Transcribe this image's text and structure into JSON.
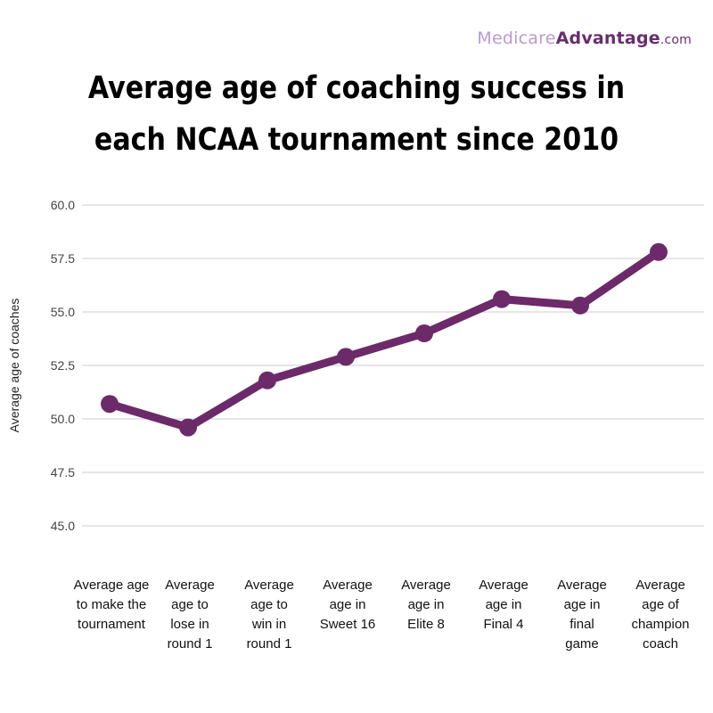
{
  "brand": {
    "part1": "Medicare",
    "part2": "Advantage",
    "part3": ".com"
  },
  "chart_data": {
    "type": "line",
    "title_lines": [
      "Average age of coaching success in",
      "each NCAA tournament since 2010"
    ],
    "ylabel": "Average age of coaches",
    "xlabel": "",
    "ylim": [
      45.0,
      60.0
    ],
    "yticks": [
      "60.0",
      "57.5",
      "55.0",
      "52.5",
      "50.0",
      "47.5",
      "45.0"
    ],
    "ytick_values": [
      60.0,
      57.5,
      55.0,
      52.5,
      50.0,
      47.5,
      45.0
    ],
    "categories": [
      [
        "Average age",
        "to make the",
        "tournament"
      ],
      [
        "Average",
        "age to",
        "lose in",
        "round 1"
      ],
      [
        "Average",
        "age to",
        "win in",
        "round 1"
      ],
      [
        "Average",
        "age in",
        "Sweet 16"
      ],
      [
        "Average",
        "age in",
        "Elite 8"
      ],
      [
        "Average",
        "age in",
        "Final 4"
      ],
      [
        "Average",
        "age in",
        "final",
        "game"
      ],
      [
        "Average",
        "age  of",
        "champion",
        "coach"
      ]
    ],
    "values": [
      50.7,
      49.6,
      51.8,
      52.9,
      54.0,
      55.6,
      55.3,
      57.8
    ],
    "grid": true,
    "line_color": "#6c2a6a"
  }
}
